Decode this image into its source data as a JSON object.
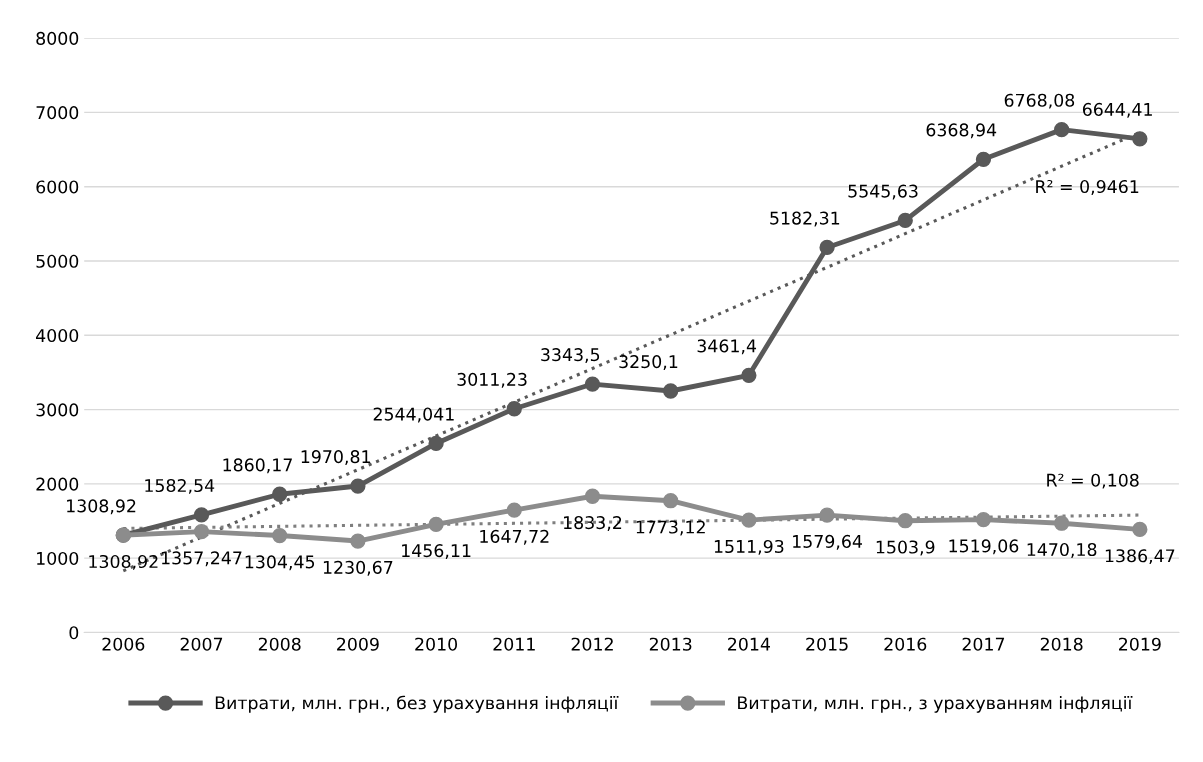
{
  "chart_data": {
    "type": "line",
    "categories": [
      "2006",
      "2007",
      "2008",
      "2009",
      "2010",
      "2011",
      "2012",
      "2013",
      "2014",
      "2015",
      "2016",
      "2017",
      "2018",
      "2019"
    ],
    "series": [
      {
        "name": "Витрати, млн. грн., без урахування інфляції",
        "color": "#595959",
        "marker": "circle",
        "values": [
          1308.92,
          1582.54,
          1860.17,
          1970.81,
          2544.041,
          3011.23,
          3343.5,
          3250.1,
          3461.4,
          5182.31,
          5545.63,
          6368.94,
          6768.08,
          6644.41
        ],
        "value_labels": [
          "1308,92",
          "1582,54",
          "1860,17",
          "1970,81",
          "2544,041",
          "3011,23",
          "3343,5",
          "3250,1",
          "3461,4",
          "5182,31",
          "5545,63",
          "6368,94",
          "6768,08",
          "6644,41"
        ]
      },
      {
        "name": "Витрати, млн. грн., з урахуванням інфляції",
        "color": "#8c8c8c",
        "marker": "circle",
        "values": [
          1308.92,
          1357.247,
          1304.45,
          1230.67,
          1456.11,
          1647.72,
          1833.2,
          1773.12,
          1511.93,
          1579.64,
          1503.9,
          1519.06,
          1470.18,
          1386.47
        ],
        "value_labels": [
          "1308,92",
          "1357,247",
          "1304,45",
          "1230,67",
          "1456,11",
          "1647,72",
          "1833,2",
          "1773,12",
          "1511,93",
          "1579,64",
          "1503,9",
          "1519,06",
          "1470,18",
          "1386,47"
        ]
      },
      {
        "color": "#595959",
        "values": [
          830,
          1284,
          1738,
          2191,
          2645,
          3099,
          3553,
          4007,
          4460,
          4914,
          5368,
          5822,
          6276,
          6729
        ],
        "marker": "none",
        "line_style": "dotted"
      },
      {
        "color": "#7f7f7f",
        "values": [
          1400,
          1414,
          1428,
          1442,
          1455,
          1469,
          1483,
          1497,
          1511,
          1525,
          1539,
          1552,
          1566,
          1580
        ],
        "marker": "none",
        "line_style": "dotted"
      }
    ],
    "annotations": [
      "R² = 0,9461",
      "R² = 0,108"
    ],
    "ylim": [
      0,
      8000
    ],
    "yticks": [
      0,
      1000,
      2000,
      3000,
      4000,
      5000,
      6000,
      7000,
      8000
    ],
    "grid": "y",
    "legend": "bottom"
  }
}
